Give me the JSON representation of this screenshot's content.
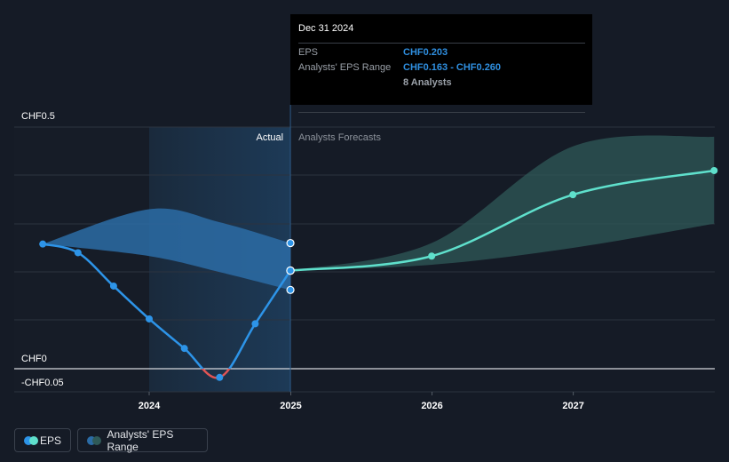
{
  "chart_data": {
    "type": "line",
    "y_tick_labels": [
      "CHF0.5",
      "CHF0",
      "-CHF0.05"
    ],
    "x_tick_labels": [
      "2024",
      "2025",
      "2026",
      "2027"
    ],
    "ylim": [
      -0.05,
      0.5
    ],
    "section_labels": {
      "actual": "Actual",
      "forecast": "Analysts Forecasts"
    },
    "series": [
      {
        "name": "EPS",
        "color": "#2d94e8",
        "negative_color": "#e05454",
        "x": [
          "2023-04-01",
          "2023-07-01",
          "2023-10-01",
          "2024-01-01",
          "2024-04-01",
          "2024-07-01",
          "2024-10-01",
          "2024-12-31"
        ],
        "values": [
          0.258,
          0.24,
          0.171,
          0.103,
          0.042,
          -0.018,
          0.093,
          0.203
        ]
      },
      {
        "name": "EPS Forecast",
        "color": "#5fe0cc",
        "x": [
          "2024-12-31",
          "2025-12-31",
          "2026-12-31",
          "2027-12-31"
        ],
        "values": [
          0.203,
          0.233,
          0.36,
          0.41
        ]
      }
    ],
    "ranges": [
      {
        "name": "Analysts' EPS Range (actual period)",
        "color": "#2b6ca6",
        "x": [
          "2023-04-01",
          "2024-01-01",
          "2024-07-01",
          "2024-12-31"
        ],
        "high": [
          0.258,
          0.33,
          0.303,
          0.26
        ],
        "low": [
          0.258,
          0.233,
          0.2,
          0.163
        ]
      },
      {
        "name": "Analysts' EPS Range (forecast)",
        "color": "#2f5a58",
        "x": [
          "2024-12-31",
          "2025-12-31",
          "2026-12-31",
          "2027-12-31"
        ],
        "high": [
          0.203,
          0.26,
          0.46,
          0.48
        ],
        "low": [
          0.203,
          0.215,
          0.25,
          0.3
        ]
      }
    ]
  },
  "tooltip": {
    "date": "Dec 31 2024",
    "eps_label": "EPS",
    "eps_value": "CHF0.203",
    "range_label": "Analysts' EPS Range",
    "range_value": "CHF0.163 - CHF0.260",
    "analysts": "8 Analysts"
  },
  "legend": {
    "eps": "EPS",
    "range": "Analysts' EPS Range",
    "eps_colors": [
      "#5fe0cc",
      "#2d94e8"
    ],
    "range_colors": [
      "#2f5a58",
      "#2b6ca6"
    ]
  }
}
